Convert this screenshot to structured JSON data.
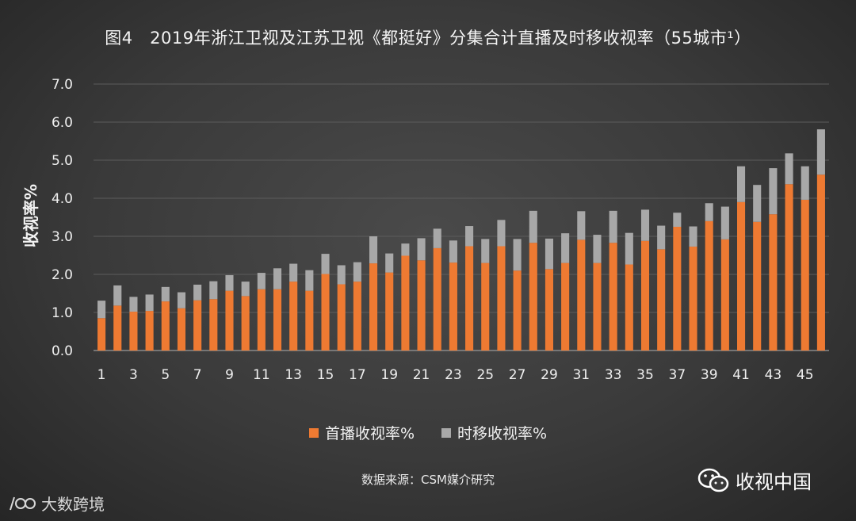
{
  "title": "图4　2019年浙江卫视及江苏卫视《都挺好》分集合计直播及时移收视率（55城市¹）",
  "source": "数据来源：CSM媒介研究",
  "brand": {
    "wechat_label": "收视中国",
    "watermark_label": "大数跨境"
  },
  "colors": {
    "first_broadcast": "#ee7a32",
    "time_shift": "#a8a8a8"
  },
  "chart_data": {
    "type": "bar",
    "stacked": true,
    "title": "图4　2019年浙江卫视及江苏卫视《都挺好》分集合计直播及时移收视率（55城市¹）",
    "ylabel": "收视率%",
    "xlabel": "",
    "ylim": [
      0,
      7
    ],
    "yticks": [
      "0.0",
      "1.0",
      "2.0",
      "3.0",
      "4.0",
      "5.0",
      "6.0",
      "7.0"
    ],
    "grid": true,
    "legend_position": "bottom",
    "categories": [
      "1",
      "2",
      "3",
      "4",
      "5",
      "6",
      "7",
      "8",
      "9",
      "10",
      "11",
      "12",
      "13",
      "14",
      "15",
      "16",
      "17",
      "18",
      "19",
      "20",
      "21",
      "22",
      "23",
      "24",
      "25",
      "26",
      "27",
      "28",
      "29",
      "30",
      "31",
      "32",
      "33",
      "34",
      "35",
      "36",
      "37",
      "38",
      "39",
      "40",
      "41",
      "42",
      "43",
      "44",
      "45",
      "46"
    ],
    "xtick_labels": [
      "1",
      "3",
      "5",
      "7",
      "9",
      "11",
      "13",
      "15",
      "17",
      "19",
      "21",
      "23",
      "25",
      "27",
      "29",
      "31",
      "33",
      "35",
      "37",
      "39",
      "41",
      "43",
      "45"
    ],
    "series": [
      {
        "name": "首播收视率%",
        "values": [
          0.85,
          1.18,
          1.02,
          1.04,
          1.29,
          1.11,
          1.32,
          1.35,
          1.57,
          1.43,
          1.61,
          1.61,
          1.81,
          1.57,
          2.01,
          1.74,
          1.81,
          2.29,
          2.05,
          2.49,
          2.37,
          2.69,
          2.31,
          2.74,
          2.3,
          2.74,
          2.1,
          2.83,
          2.14,
          2.3,
          2.91,
          2.3,
          2.83,
          2.26,
          2.88,
          2.66,
          3.25,
          2.73,
          3.4,
          2.92,
          3.9,
          3.38,
          3.58,
          4.37,
          3.96,
          4.62
        ]
      },
      {
        "name": "时移收视率%",
        "values": [
          0.46,
          0.53,
          0.39,
          0.43,
          0.38,
          0.42,
          0.41,
          0.47,
          0.41,
          0.38,
          0.43,
          0.55,
          0.47,
          0.54,
          0.53,
          0.5,
          0.51,
          0.71,
          0.5,
          0.32,
          0.58,
          0.51,
          0.58,
          0.53,
          0.63,
          0.69,
          0.83,
          0.84,
          0.8,
          0.78,
          0.75,
          0.74,
          0.84,
          0.83,
          0.82,
          0.62,
          0.37,
          0.53,
          0.47,
          0.86,
          0.94,
          0.97,
          1.21,
          0.81,
          0.88,
          1.19
        ]
      }
    ]
  }
}
